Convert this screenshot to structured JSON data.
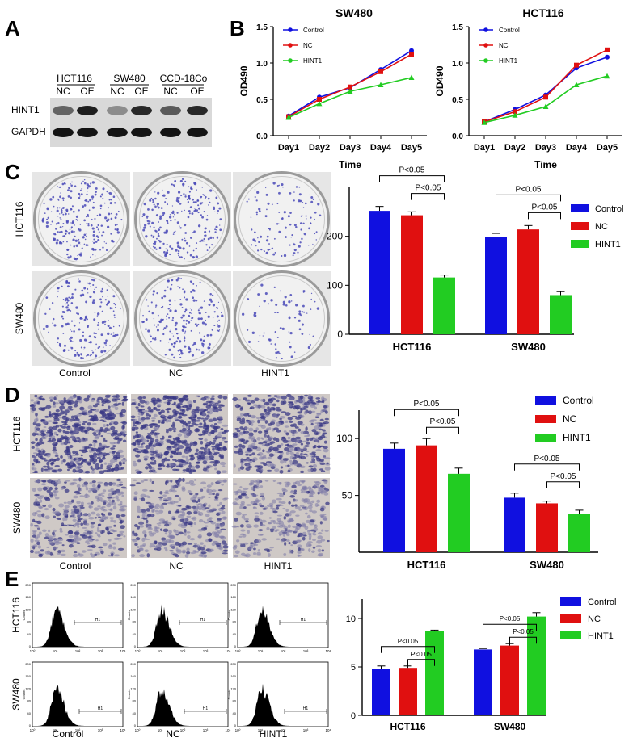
{
  "panels": {
    "A": "A",
    "B": "B",
    "C": "C",
    "D": "D",
    "E": "E"
  },
  "blot": {
    "groups": [
      "HCT116",
      "SW480",
      "CCD-18Co"
    ],
    "lanes": [
      "NC",
      "OE",
      "NC",
      "OE",
      "NC",
      "OE"
    ],
    "rows": [
      "HINT1",
      "GAPDH"
    ],
    "hint1_intensity": [
      0.55,
      0.9,
      0.35,
      0.85,
      0.6,
      0.85
    ]
  },
  "colors": {
    "control": "#1010e0",
    "nc": "#e01010",
    "hint1": "#22cc22"
  },
  "chart_data": [
    {
      "id": "B-SW480",
      "type": "line",
      "title": "SW480",
      "xlabel": "Time",
      "ylabel": "OD490",
      "x": [
        "Day1",
        "Day2",
        "Day3",
        "Day4",
        "Day5"
      ],
      "ylim": [
        0,
        1.5
      ],
      "yticks": [
        "0.0",
        "0.5",
        "1.0",
        "1.5"
      ],
      "legend": "top-left",
      "series": [
        {
          "name": "Control",
          "values": [
            0.27,
            0.53,
            0.66,
            0.91,
            1.17
          ]
        },
        {
          "name": "NC",
          "values": [
            0.26,
            0.5,
            0.67,
            0.88,
            1.12
          ]
        },
        {
          "name": "HINT1",
          "values": [
            0.25,
            0.44,
            0.61,
            0.7,
            0.8
          ]
        }
      ]
    },
    {
      "id": "B-HCT116",
      "type": "line",
      "title": "HCT116",
      "xlabel": "Time",
      "ylabel": "OD490",
      "x": [
        "Day1",
        "Day2",
        "Day3",
        "Day4",
        "Day5"
      ],
      "ylim": [
        0,
        1.5
      ],
      "yticks": [
        "0.0",
        "0.5",
        "1.0",
        "1.5"
      ],
      "legend": "top-left",
      "series": [
        {
          "name": "Control",
          "values": [
            0.19,
            0.36,
            0.56,
            0.93,
            1.08
          ]
        },
        {
          "name": "NC",
          "values": [
            0.19,
            0.33,
            0.53,
            0.97,
            1.18
          ]
        },
        {
          "name": "HINT1",
          "values": [
            0.18,
            0.28,
            0.4,
            0.7,
            0.82
          ]
        }
      ]
    },
    {
      "id": "C-bar",
      "type": "bar",
      "categories": [
        "HCT116",
        "SW480"
      ],
      "ylim": [
        0,
        300
      ],
      "yticks": [
        "0",
        "100",
        "200"
      ],
      "legend": "right",
      "series": [
        {
          "name": "Control",
          "values": [
            252,
            198
          ],
          "errors": [
            9,
            8
          ]
        },
        {
          "name": "NC",
          "values": [
            243,
            214
          ],
          "errors": [
            7,
            8
          ]
        },
        {
          "name": "HINT1",
          "values": [
            116,
            80
          ],
          "errors": [
            5,
            7
          ]
        }
      ],
      "annotations": [
        "P<0.05",
        "P<0.05",
        "P<0.05",
        "P<0.05"
      ]
    },
    {
      "id": "D-bar",
      "type": "bar",
      "categories": [
        "HCT116",
        "SW480"
      ],
      "ylim": [
        0,
        125
      ],
      "yticks": [
        "50",
        "100"
      ],
      "legend": "top-right",
      "series": [
        {
          "name": "Control",
          "values": [
            91,
            48
          ],
          "errors": [
            5,
            4
          ]
        },
        {
          "name": "NC",
          "values": [
            94,
            43
          ],
          "errors": [
            6,
            2
          ]
        },
        {
          "name": "HINT1",
          "values": [
            69,
            34
          ],
          "errors": [
            5,
            3
          ]
        }
      ],
      "annotations": [
        "P<0.05",
        "P<0.05",
        "P<0.05",
        "P<0.05"
      ]
    },
    {
      "id": "E-bar",
      "type": "bar",
      "categories": [
        "HCT116",
        "SW480"
      ],
      "ylim": [
        0,
        12
      ],
      "yticks": [
        "0",
        "5",
        "10"
      ],
      "legend": "top-right",
      "series": [
        {
          "name": "Control",
          "values": [
            4.8,
            6.8
          ],
          "errors": [
            0.3,
            0.1
          ]
        },
        {
          "name": "NC",
          "values": [
            4.9,
            7.2
          ],
          "errors": [
            0.2,
            0.2
          ]
        },
        {
          "name": "HINT1",
          "values": [
            8.7,
            10.2
          ],
          "errors": [
            0.1,
            0.4
          ]
        }
      ],
      "annotations": [
        "P<0.05",
        "P<0.05",
        "P<0.05",
        "P<0.05"
      ]
    }
  ],
  "panelC": {
    "rows": [
      "HCT116",
      "SW480"
    ],
    "cols": [
      "Control",
      "NC",
      "HINT1"
    ],
    "colony_density": [
      [
        250,
        240,
        115
      ],
      [
        195,
        212,
        80
      ]
    ]
  },
  "panelD": {
    "rows": [
      "HCT116",
      "SW480"
    ],
    "cols": [
      "Control",
      "NC",
      "HINT1"
    ],
    "stain_density": [
      [
        0.91,
        0.94,
        0.69
      ],
      [
        0.48,
        0.43,
        0.34
      ]
    ]
  },
  "panelE": {
    "rows": [
      "HCT116",
      "SW480"
    ],
    "cols": [
      "Control",
      "NC",
      "HINT1"
    ],
    "gate_label": "H1",
    "yaxis_label": "Counts",
    "yticks": [
      "200",
      "160",
      "120",
      "80",
      "40",
      "0"
    ],
    "xticks": [
      "10⁰",
      "10¹",
      "10²",
      "10³",
      "10⁴"
    ]
  }
}
